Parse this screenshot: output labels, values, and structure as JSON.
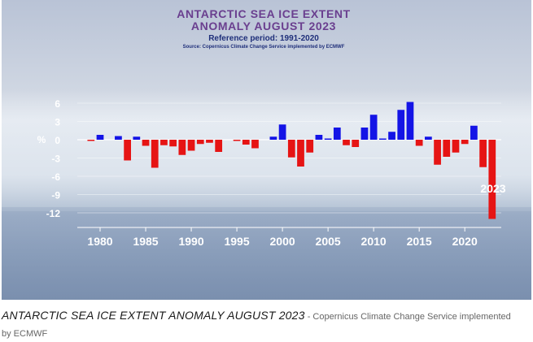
{
  "chart_data": {
    "type": "bar",
    "title": "ANTARCTIC SEA ICE EXTENT ANOMALY AUGUST 2023",
    "subtitle": "Reference period: 1991-2020",
    "source": "Source: Copernicus Climate Change Service implemented by ECMWF",
    "ylabel": "%",
    "ylim": [
      -14,
      7.5
    ],
    "yticks": [
      "6",
      "3",
      "0",
      "-3",
      "-6",
      "-9",
      "-12"
    ],
    "ytick_values": [
      6,
      3,
      0,
      -3,
      -6,
      -9,
      -12
    ],
    "xticks": [
      "1980",
      "1985",
      "1990",
      "1995",
      "2000",
      "2005",
      "2010",
      "2015",
      "2020"
    ],
    "xtick_values": [
      1980,
      1985,
      1990,
      1995,
      2000,
      2005,
      2010,
      2015,
      2020
    ],
    "xlim": [
      1977.5,
      2024
    ],
    "grid": true,
    "annotation": "2023",
    "positive_color": "#1414e6",
    "negative_color": "#e61414",
    "x": [
      1979,
      1980,
      1981,
      1982,
      1983,
      1984,
      1985,
      1986,
      1987,
      1988,
      1989,
      1990,
      1991,
      1992,
      1993,
      1994,
      1995,
      1996,
      1997,
      1998,
      1999,
      2000,
      2001,
      2002,
      2003,
      2004,
      2005,
      2006,
      2007,
      2008,
      2009,
      2010,
      2011,
      2012,
      2013,
      2014,
      2015,
      2016,
      2017,
      2018,
      2019,
      2020,
      2021,
      2022,
      2023
    ],
    "values": [
      -0.2,
      0.8,
      0.0,
      0.6,
      -3.4,
      0.5,
      -1.0,
      -4.6,
      -0.9,
      -1.1,
      -2.5,
      -1.8,
      -0.7,
      -0.5,
      -2.0,
      0.0,
      -0.2,
      -0.8,
      -1.4,
      0.0,
      0.5,
      2.5,
      -2.9,
      -4.4,
      -2.1,
      0.8,
      0.2,
      2.0,
      -0.9,
      -1.2,
      2.0,
      4.1,
      0.2,
      1.3,
      4.9,
      6.2,
      -1.0,
      0.5,
      -4.1,
      -2.8,
      -2.1,
      -0.7,
      2.3,
      -4.5,
      -13.0
    ]
  },
  "caption": {
    "title": "ANTARCTIC SEA ICE EXTENT ANOMALY AUGUST 2023",
    "separator": " - ",
    "credit": "Copernicus Climate Change Service implemented by ECMWF"
  }
}
